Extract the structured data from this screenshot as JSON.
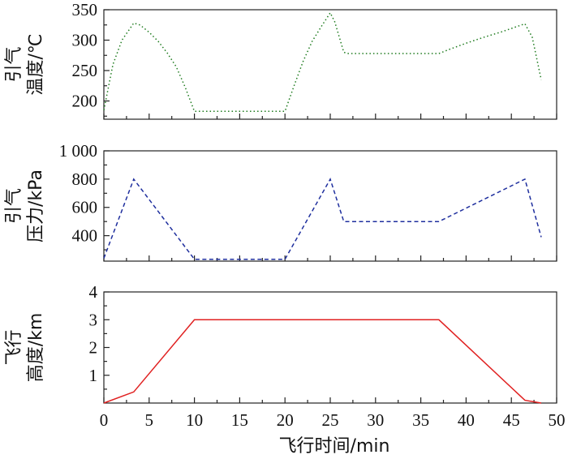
{
  "chart_data": [
    {
      "type": "line",
      "ylabel_lines": [
        "引气",
        "温度/℃"
      ],
      "xlim": [
        0,
        50
      ],
      "ylim": [
        170,
        350
      ],
      "yticks": [
        200,
        250,
        300,
        350
      ],
      "ytick_labels": [
        "200",
        "250",
        "300",
        "350"
      ],
      "xticks": [
        0,
        5,
        10,
        15,
        20,
        25,
        30,
        35,
        40,
        45,
        50
      ],
      "style": {
        "color": "#1e7b1e",
        "dash": "dotted"
      },
      "series": [
        {
          "x": [
            0,
            1,
            2,
            3.3,
            4,
            5,
            6,
            7,
            8,
            9,
            10,
            20,
            21,
            22,
            23,
            24,
            25,
            25.5,
            26.5,
            27,
            37,
            38,
            40,
            42,
            44,
            46.5,
            47.3,
            48.3
          ],
          "y": [
            185,
            260,
            300,
            328,
            325,
            313,
            298,
            279,
            256,
            222,
            183,
            183,
            225,
            265,
            298,
            322,
            345,
            330,
            280,
            278,
            278,
            284,
            295,
            305,
            314,
            327,
            305,
            235
          ]
        }
      ]
    },
    {
      "type": "line",
      "ylabel_lines": [
        "引气",
        "压力/kPa"
      ],
      "xlim": [
        0,
        50
      ],
      "ylim": [
        220,
        1000
      ],
      "yticks": [
        400,
        600,
        800,
        1000
      ],
      "ytick_labels": [
        "400",
        "600",
        "800",
        "1 000"
      ],
      "xticks": [
        0,
        5,
        10,
        15,
        20,
        25,
        30,
        35,
        40,
        45,
        50
      ],
      "style": {
        "color": "#1f2f9e",
        "dash": "dashed"
      },
      "series": [
        {
          "x": [
            0,
            3.3,
            10,
            20,
            25,
            26.5,
            37,
            46.5,
            48.3
          ],
          "y": [
            240,
            800,
            233,
            233,
            800,
            500,
            500,
            800,
            390
          ]
        }
      ]
    },
    {
      "type": "line",
      "ylabel_lines": [
        "飞行",
        "高度/km"
      ],
      "xlim": [
        0,
        50
      ],
      "ylim": [
        0,
        4
      ],
      "yticks": [
        1,
        2,
        3,
        4
      ],
      "ytick_labels": [
        "1",
        "2",
        "3",
        "4"
      ],
      "xticks": [
        0,
        5,
        10,
        15,
        20,
        25,
        30,
        35,
        40,
        45,
        50
      ],
      "xtick_labels": [
        "0",
        "5",
        "10",
        "15",
        "20",
        "25",
        "30",
        "35",
        "40",
        "45",
        "50"
      ],
      "xlabel": "飞行时间/min",
      "style": {
        "color": "#e02020",
        "dash": "solid"
      },
      "series": [
        {
          "x": [
            0,
            3.3,
            10,
            37,
            46.5,
            48.3
          ],
          "y": [
            0,
            0.4,
            3,
            3,
            0.1,
            0
          ]
        }
      ]
    }
  ]
}
